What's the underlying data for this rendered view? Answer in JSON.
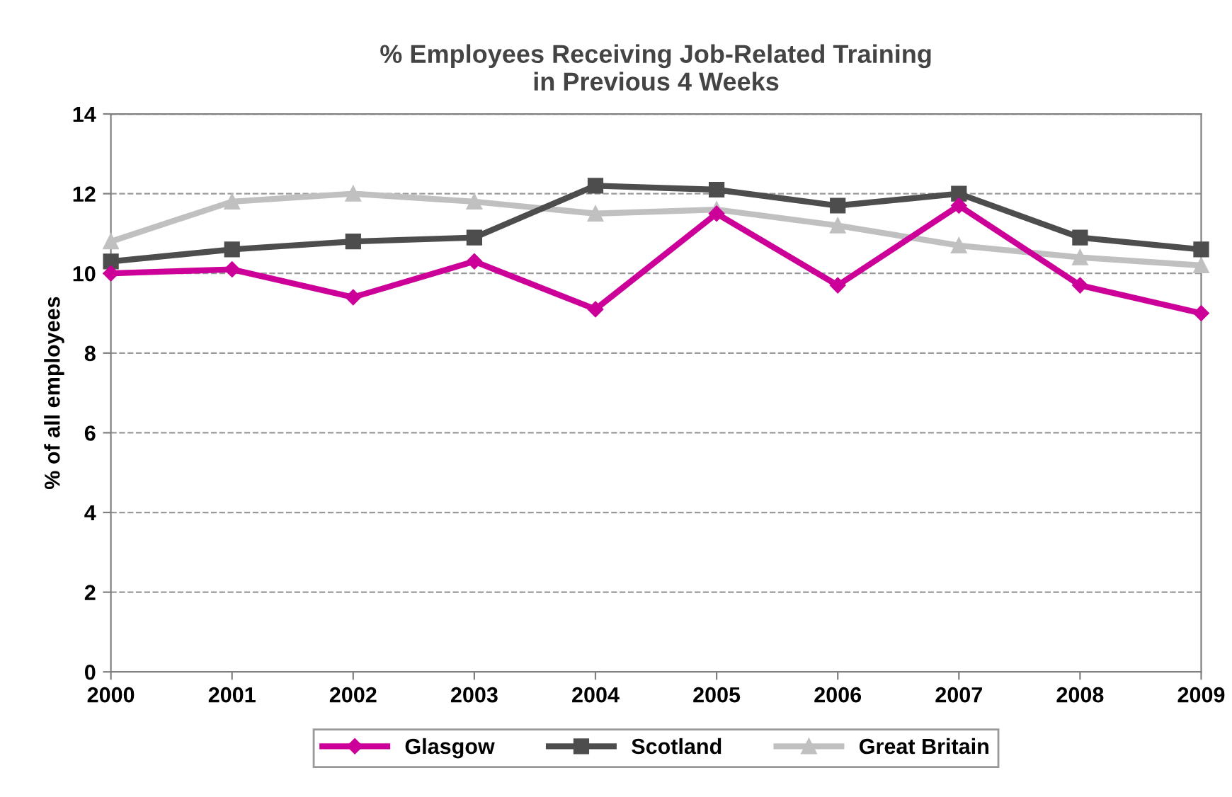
{
  "chart_data": {
    "type": "line",
    "title": "% Employees Receiving Job-Related Training\nin Previous 4 Weeks",
    "ylabel": "% of all employees",
    "x": [
      2000,
      2001,
      2002,
      2003,
      2004,
      2005,
      2006,
      2007,
      2008,
      2009
    ],
    "series": [
      {
        "name": "Glasgow",
        "color": "#cc0099",
        "marker": "diamond",
        "values": [
          10.0,
          10.1,
          9.4,
          10.3,
          9.1,
          11.5,
          9.7,
          11.7,
          9.7,
          9.0
        ]
      },
      {
        "name": "Scotland",
        "color": "#4d4d4d",
        "marker": "square",
        "values": [
          10.3,
          10.6,
          10.8,
          10.9,
          12.2,
          12.1,
          11.7,
          12.0,
          10.9,
          10.6
        ]
      },
      {
        "name": "Great Britain",
        "color": "#c0c0c0",
        "marker": "triangle",
        "values": [
          10.8,
          11.8,
          12.0,
          11.8,
          11.5,
          11.6,
          11.2,
          10.7,
          10.4,
          10.2
        ]
      }
    ],
    "xlim": [
      2000,
      2009
    ],
    "xticks": [
      2000,
      2001,
      2002,
      2003,
      2004,
      2005,
      2006,
      2007,
      2008,
      2009
    ],
    "ylim": [
      0,
      14
    ],
    "yticks": [
      0,
      2,
      4,
      6,
      8,
      10,
      12,
      14
    ],
    "grid": "y",
    "legend": "bottom",
    "line_style": "solid"
  }
}
